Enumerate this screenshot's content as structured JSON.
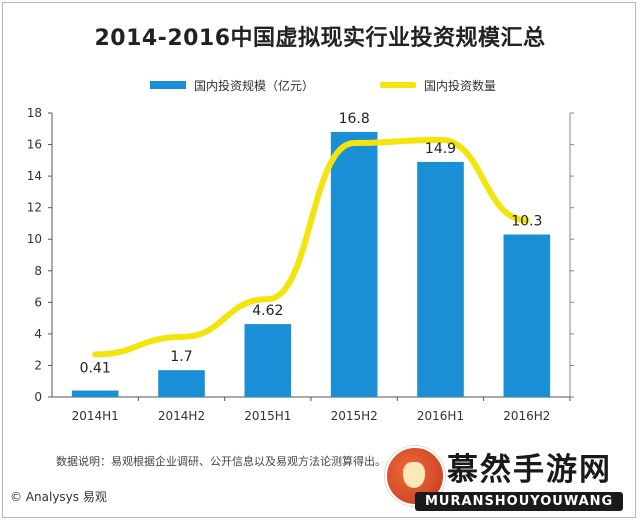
{
  "chart_data": {
    "type": "bar",
    "title": "2014-2016中国虚拟现实行业投资规模汇总",
    "categories": [
      "2014H1",
      "2014H2",
      "2015H1",
      "2015H2",
      "2016H1",
      "2016H2"
    ],
    "series": [
      {
        "name": "国内投资规模（亿元）",
        "type": "bar",
        "values": [
          0.41,
          1.7,
          4.62,
          16.8,
          14.9,
          10.3
        ],
        "data_labels": [
          "0.41",
          "1.7",
          "4.62",
          "16.8",
          "14.9",
          "10.3"
        ],
        "color": "#1b8fd6"
      },
      {
        "name": "国内投资数量",
        "type": "line",
        "values": [
          2.7,
          3.8,
          6.2,
          16.1,
          16.3,
          11.2
        ],
        "color": "#f3e40b"
      }
    ],
    "ylim": [
      0,
      18
    ],
    "yticks": [
      0,
      2,
      4,
      6,
      8,
      10,
      12,
      14,
      16,
      18
    ],
    "grid": false,
    "legend": "top"
  },
  "note": "数据说明：易观根据企业调研、公开信息以及易观方法论测算得出。",
  "footer": "© Analysys 易观",
  "watermark": {
    "title": "慕然手游网",
    "sub": "MURANSHOUYOUWANG"
  },
  "colors": {
    "bar": "#1b8fd6",
    "line": "#f3e40b"
  }
}
